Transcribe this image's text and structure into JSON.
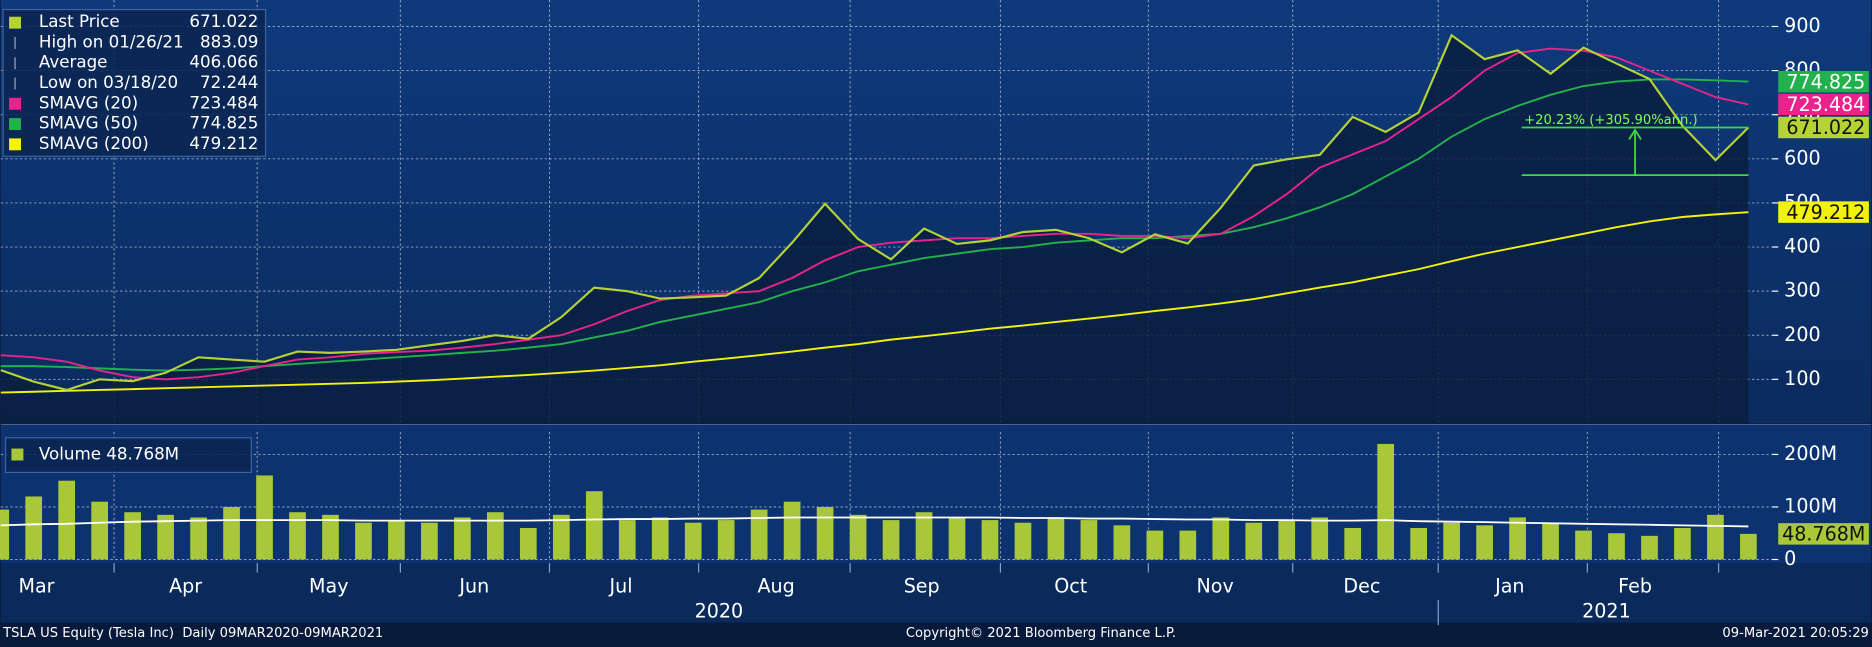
{
  "chart_data": [
    {
      "type": "line",
      "series": [
        {
          "name": "Last Price",
          "color": "#b5d334",
          "legend_value": 671.022,
          "values": [
            121,
            95,
            76,
            100,
            96,
            115,
            150,
            145,
            140,
            163,
            160,
            163,
            167,
            177,
            187,
            200,
            192,
            241,
            308,
            300,
            283,
            286,
            290,
            330,
            410,
            498,
            418,
            372,
            442,
            407,
            415,
            434,
            439,
            420,
            388,
            429,
            408,
            489,
            585,
            599,
            609,
            695,
            661,
            705,
            880,
            826,
            846,
            793,
            852,
            816,
            781,
            675,
            597,
            671
          ]
        },
        {
          "name": "SMAVG (20)",
          "color": "#e8238c",
          "legend_value": 723.484,
          "values": [
            155,
            150,
            140,
            120,
            105,
            100,
            105,
            115,
            130,
            145,
            150,
            158,
            162,
            165,
            172,
            180,
            190,
            200,
            225,
            255,
            280,
            290,
            295,
            300,
            330,
            370,
            400,
            410,
            415,
            420,
            420,
            425,
            430,
            430,
            425,
            425,
            420,
            430,
            470,
            520,
            580,
            610,
            640,
            690,
            740,
            800,
            840,
            850,
            845,
            830,
            800,
            770,
            740,
            723
          ]
        },
        {
          "name": "SMAVG (50)",
          "color": "#22b14c",
          "legend_value": 774.825,
          "values": [
            130,
            130,
            128,
            125,
            122,
            120,
            122,
            125,
            130,
            135,
            140,
            145,
            150,
            155,
            160,
            165,
            172,
            180,
            195,
            210,
            230,
            245,
            260,
            275,
            300,
            320,
            345,
            360,
            375,
            385,
            395,
            400,
            410,
            415,
            420,
            420,
            425,
            430,
            445,
            465,
            490,
            520,
            560,
            600,
            650,
            690,
            720,
            745,
            765,
            775,
            780,
            780,
            778,
            775
          ]
        },
        {
          "name": "SMAVG (200)",
          "color": "#f2f20a",
          "legend_value": 479.212,
          "values": [
            70,
            72,
            74,
            76,
            78,
            80,
            82,
            84,
            86,
            88,
            90,
            92,
            95,
            98,
            102,
            106,
            110,
            115,
            120,
            126,
            132,
            140,
            147,
            155,
            163,
            172,
            180,
            190,
            198,
            206,
            215,
            222,
            230,
            238,
            246,
            255,
            263,
            272,
            282,
            295,
            308,
            320,
            335,
            350,
            368,
            385,
            400,
            415,
            430,
            445,
            458,
            468,
            474,
            479
          ]
        }
      ],
      "extra_stats": [
        {
          "label": "High on 01/26/21",
          "value": 883.09
        },
        {
          "label": "Average",
          "value": 406.066
        },
        {
          "label": "Low on 03/18/20",
          "value": 72.244
        }
      ],
      "annotation": {
        "text": "+20.23% (+305.90%ann.)",
        "from": 563,
        "to": 671
      },
      "ylim": [
        0,
        960
      ],
      "yticks": [
        100,
        200,
        300,
        400,
        500,
        600,
        700,
        800,
        900
      ],
      "grid": true
    },
    {
      "type": "bar",
      "series": [
        {
          "name": "Volume",
          "color": "#a8c83a",
          "values": [
            95,
            120,
            150,
            110,
            90,
            85,
            80,
            100,
            160,
            90,
            85,
            70,
            75,
            70,
            80,
            90,
            60,
            85,
            130,
            75,
            80,
            70,
            75,
            95,
            110,
            100,
            85,
            75,
            90,
            80,
            75,
            70,
            80,
            75,
            65,
            55,
            55,
            80,
            70,
            75,
            80,
            60,
            220,
            60,
            70,
            65,
            80,
            70,
            55,
            50,
            45,
            60,
            85,
            48.768
          ],
          "value_labels": [
            null,
            null,
            null,
            null,
            null,
            null,
            null,
            null,
            null,
            null,
            null,
            null,
            null,
            null,
            null,
            null,
            null,
            null,
            null,
            null,
            null,
            null,
            null,
            null,
            null,
            null,
            null,
            null,
            null,
            null,
            null,
            null,
            null,
            null,
            null,
            null,
            null,
            null,
            null,
            null,
            null,
            null,
            null,
            null,
            null,
            null,
            null,
            null,
            null,
            null,
            null,
            null,
            null,
            "48.768M"
          ]
        },
        {
          "color": "#ffffff",
          "values": [
            65,
            67,
            68,
            70,
            72,
            73,
            74,
            75,
            75,
            75,
            75,
            74,
            74,
            74,
            74,
            74,
            74,
            75,
            76,
            77,
            77,
            78,
            78,
            79,
            80,
            80,
            80,
            80,
            80,
            80,
            80,
            79,
            79,
            78,
            78,
            77,
            76,
            76,
            75,
            75,
            74,
            74,
            75,
            73,
            72,
            71,
            70,
            69,
            68,
            67,
            66,
            65,
            64,
            63
          ]
        }
      ],
      "ylim": [
        0,
        243
      ],
      "yticks": [
        {
          "value": 0,
          "label": "0"
        },
        {
          "value": 100,
          "label": "100M"
        },
        {
          "value": 200,
          "label": "200M"
        }
      ],
      "grid": true
    }
  ],
  "x_axis": {
    "months": [
      "Mar",
      "Apr",
      "May",
      "Jun",
      "Jul",
      "Aug",
      "Sep",
      "Oct",
      "Nov",
      "Dec",
      "Jan",
      "Feb"
    ],
    "years": [
      "2020",
      "2021"
    ]
  },
  "footer": {
    "left": "TSLA US Equity (Tesla Inc)  Daily 09MAR2020-09MAR2021",
    "center": "Copyright© 2021 Bloomberg Finance L.P.",
    "right": "09-Mar-2021 20:05:29"
  }
}
